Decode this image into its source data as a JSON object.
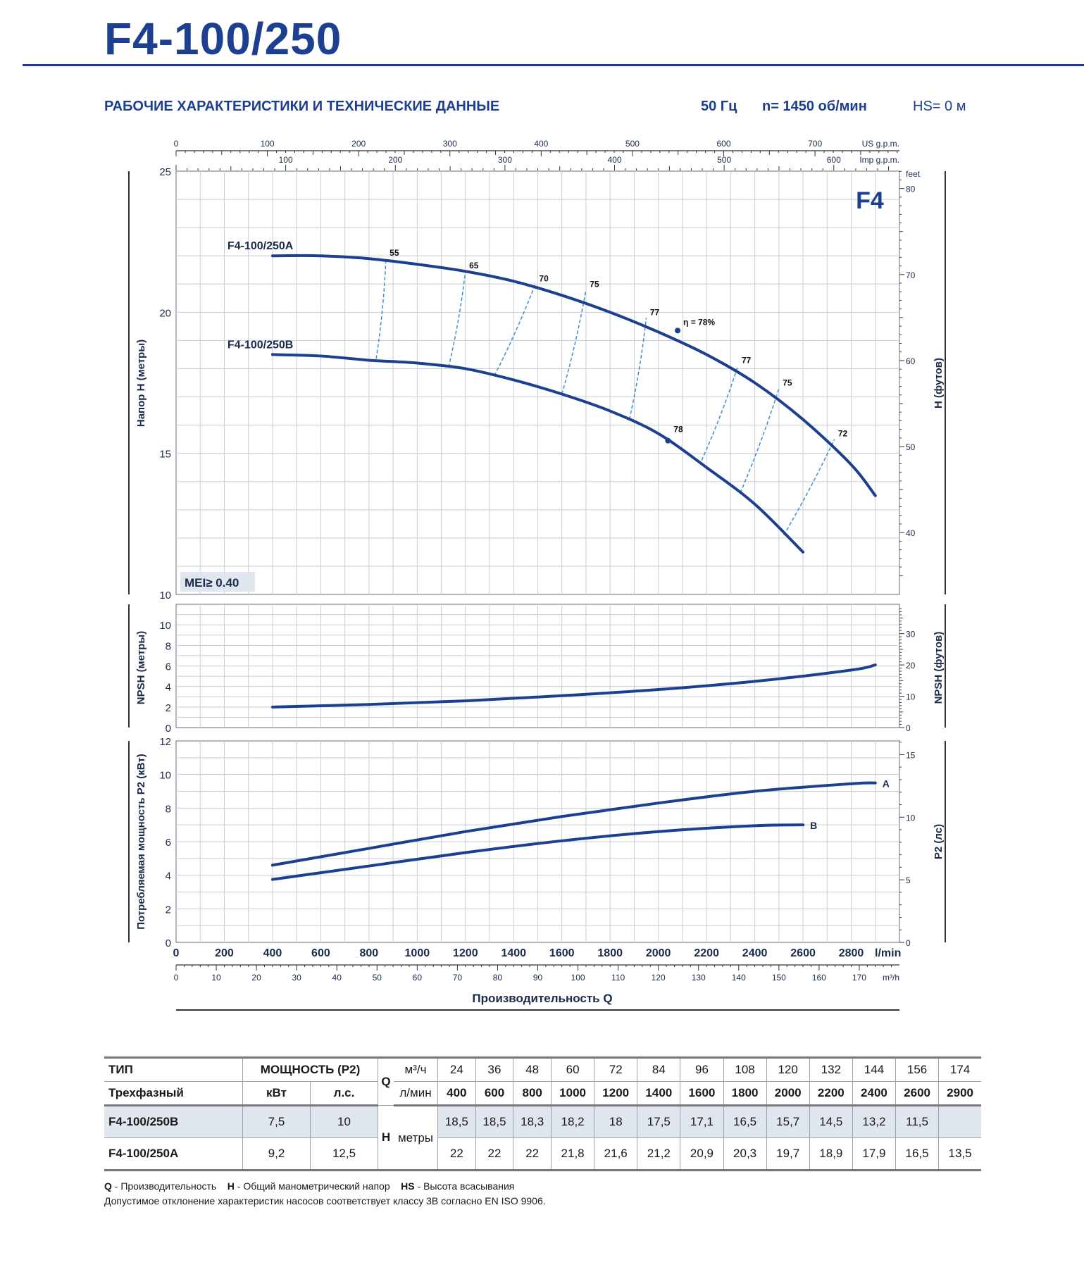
{
  "header": {
    "model_title": "F4-100/250",
    "subtitle": "РАБОЧИЕ ХАРАКТЕРИСТИКИ И ТЕХНИЧЕСКИЕ ДАННЫЕ",
    "frequency": "50 Гц",
    "speed": "n= 1450 об/мин",
    "suction_head": "HS= 0 м"
  },
  "chart_data": [
    {
      "type": "line",
      "title": "F4",
      "badge": "MEI≥ 0.40",
      "ylabel": "Напор H (метры)",
      "ylabel_right": "H (футов)",
      "ylim": [
        10,
        25
      ],
      "yticks": [
        10,
        15,
        20,
        25
      ],
      "yticks_right_label": "feet",
      "yticks_right": [
        40,
        50,
        60,
        70,
        80
      ],
      "xlim": [
        0,
        3000
      ],
      "top_axis_us": {
        "label": "US g.p.m.",
        "ticks": [
          0,
          100,
          200,
          300,
          400,
          500,
          600,
          700
        ]
      },
      "top_axis_imp": {
        "label": "Imp g.p.m.",
        "ticks": [
          100,
          200,
          300,
          400,
          500,
          600
        ]
      },
      "series": [
        {
          "name": "F4-100/250A",
          "x": [
            400,
            600,
            800,
            1000,
            1200,
            1400,
            1600,
            1800,
            2000,
            2200,
            2400,
            2600,
            2800,
            2900
          ],
          "y": [
            22.0,
            22.0,
            21.9,
            21.7,
            21.45,
            21.1,
            20.6,
            20.0,
            19.3,
            18.5,
            17.5,
            16.2,
            14.6,
            13.5
          ]
        },
        {
          "name": "F4-100/250B",
          "x": [
            400,
            600,
            800,
            1000,
            1200,
            1400,
            1600,
            1800,
            2000,
            2200,
            2400,
            2600
          ],
          "y": [
            18.5,
            18.45,
            18.3,
            18.2,
            18.0,
            17.6,
            17.1,
            16.5,
            15.7,
            14.5,
            13.2,
            11.5
          ]
        }
      ],
      "efficiency_lines": [
        {
          "label": "55",
          "a": [
            870,
            21.9
          ],
          "b": [
            830,
            18.35
          ]
        },
        {
          "label": "65",
          "a": [
            1200,
            21.45
          ],
          "b": [
            1130,
            18.05
          ]
        },
        {
          "label": "70",
          "a": [
            1490,
            21.0
          ],
          "b": [
            1320,
            17.75
          ]
        },
        {
          "label": "75",
          "a": [
            1700,
            20.8
          ],
          "b": [
            1600,
            17.1
          ]
        },
        {
          "label": "77",
          "a": [
            1950,
            19.8
          ],
          "b": [
            1880,
            16.2
          ]
        },
        {
          "label": "77",
          "a": [
            2330,
            18.1
          ],
          "b": [
            2180,
            14.75
          ]
        },
        {
          "label": "75",
          "a": [
            2500,
            17.3
          ],
          "b": [
            2340,
            13.6
          ]
        },
        {
          "label": "72",
          "a": [
            2730,
            15.5
          ],
          "b": [
            2520,
            12.1
          ]
        }
      ],
      "bep_points": [
        {
          "label": "η = 78%",
          "x": 2080,
          "y": 19.35
        },
        {
          "label": "78",
          "x": 2040,
          "y": 15.45
        }
      ]
    },
    {
      "type": "line",
      "ylabel": "NPSH (метры)",
      "ylabel_right": "NPSH (футов)",
      "ylim": [
        0,
        12
      ],
      "yticks": [
        0,
        2,
        4,
        6,
        8,
        10
      ],
      "yticks_right": [
        0,
        10,
        20,
        30
      ],
      "series": [
        {
          "x": [
            400,
            800,
            1200,
            1600,
            2000,
            2400,
            2800,
            2900
          ],
          "y": [
            2.0,
            2.25,
            2.6,
            3.1,
            3.7,
            4.5,
            5.6,
            6.1
          ]
        }
      ]
    },
    {
      "type": "line",
      "ylabel": "Потребляемая мощность P2 (кВт)",
      "ylabel_right": "P2 (лс)",
      "ylim": [
        0,
        12
      ],
      "yticks": [
        0,
        2,
        4,
        6,
        8,
        10,
        12
      ],
      "yticks_right": [
        0,
        5,
        10,
        15
      ],
      "xlabel": "Производительность Q",
      "xticks_lmin": [
        0,
        200,
        400,
        600,
        800,
        1000,
        1200,
        1400,
        1600,
        1800,
        2000,
        2200,
        2400,
        2600,
        2800
      ],
      "x_unit_lmin": "l/min",
      "xticks_m3h": [
        0,
        10,
        20,
        30,
        40,
        50,
        60,
        70,
        80,
        90,
        100,
        110,
        120,
        130,
        140,
        150,
        160,
        170
      ],
      "x_unit_m3h": "m³/h",
      "series": [
        {
          "name": "A",
          "x": [
            400,
            800,
            1200,
            1600,
            2000,
            2400,
            2800,
            2900
          ],
          "y": [
            4.6,
            5.6,
            6.6,
            7.5,
            8.3,
            9.0,
            9.45,
            9.5
          ]
        },
        {
          "name": "B",
          "x": [
            400,
            800,
            1200,
            1600,
            2000,
            2400,
            2600
          ],
          "y": [
            3.75,
            4.55,
            5.35,
            6.05,
            6.6,
            6.95,
            7.0
          ]
        }
      ]
    }
  ],
  "table": {
    "type_label": "ТИП",
    "phase_label": "Трехфазный",
    "power_label": "МОЩНОСТЬ (P2)",
    "kw_label": "кВт",
    "hp_label": "л.с.",
    "q_label": "Q",
    "m3h_unit": "м³/ч",
    "lmin_unit": "л/мин",
    "h_label": "H",
    "h_unit": "метры",
    "q_m3h": [
      "24",
      "36",
      "48",
      "60",
      "72",
      "84",
      "96",
      "108",
      "120",
      "132",
      "144",
      "156",
      "174"
    ],
    "q_lmin": [
      "400",
      "600",
      "800",
      "1000",
      "1200",
      "1400",
      "1600",
      "1800",
      "2000",
      "2200",
      "2400",
      "2600",
      "2900"
    ],
    "rows": [
      {
        "model": "F4-100/250B",
        "kw": "7,5",
        "hp": "10",
        "h": [
          "18,5",
          "18,5",
          "18,3",
          "18,2",
          "18",
          "17,5",
          "17,1",
          "16,5",
          "15,7",
          "14,5",
          "13,2",
          "11,5",
          ""
        ]
      },
      {
        "model": "F4-100/250A",
        "kw": "9,2",
        "hp": "12,5",
        "h": [
          "22",
          "22",
          "22",
          "21,8",
          "21,6",
          "21,2",
          "20,9",
          "20,3",
          "19,7",
          "18,9",
          "17,9",
          "16,5",
          "13,5"
        ]
      }
    ]
  },
  "footnote": {
    "q_key": "Q",
    "q_text": " - Производительность",
    "h_key": "H",
    "h_text": " - Общий манометрический напор",
    "hs_key": "HS",
    "hs_text": " - Высота всасывания",
    "tolerance": "Допустимое отклонение характеристик насосов соответствует классу 3B согласно EN ISO 9906."
  },
  "colors": {
    "curve": "#1d3f8f",
    "eff": "#3b8fd8",
    "grid": "#c9ced4",
    "badge_bg": "#dfe6ee"
  }
}
